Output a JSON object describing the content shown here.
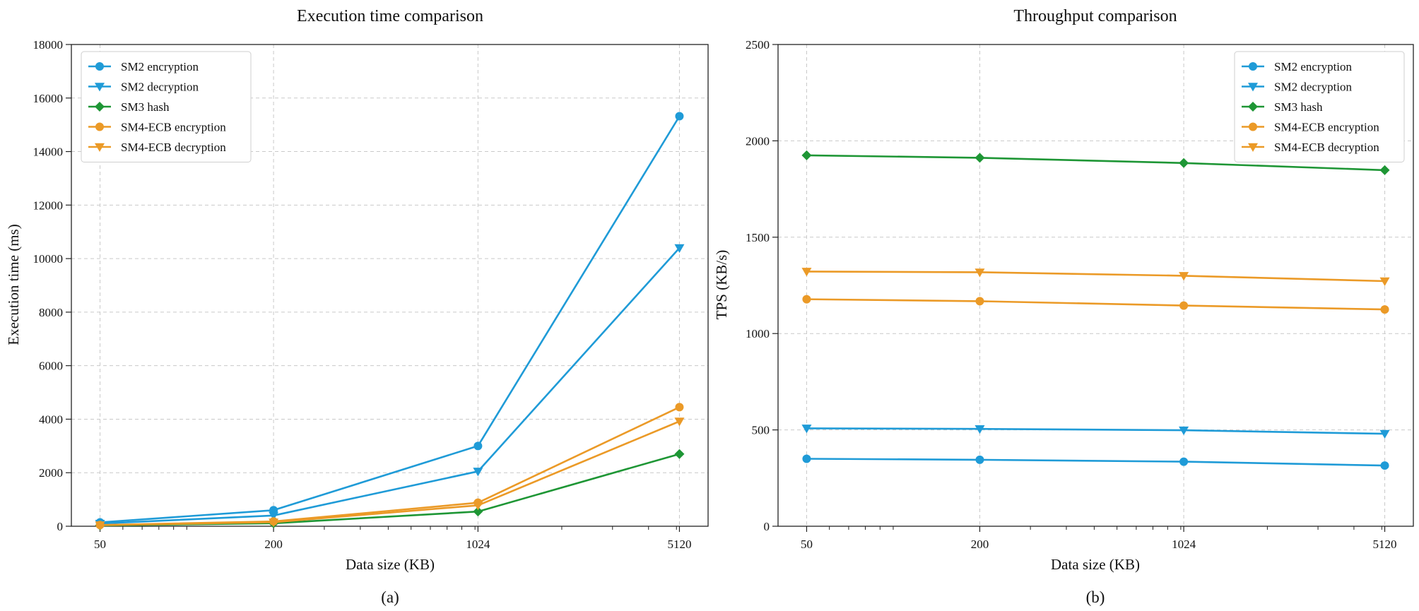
{
  "chart_data": [
    {
      "type": "line",
      "title": "Execution time comparison",
      "xlabel": "Data size (KB)",
      "ylabel": "Execution time (ms)",
      "caption": "(a)",
      "x_scale": "log",
      "x": [
        50,
        200,
        1024,
        5120
      ],
      "x_tick_labels": [
        "50",
        "200",
        "1024",
        "5120"
      ],
      "ylim": [
        0,
        18000
      ],
      "y_ticks": [
        0,
        2000,
        4000,
        6000,
        8000,
        10000,
        12000,
        14000,
        16000,
        18000
      ],
      "y_tick_labels": [
        "0",
        "2000",
        "4000",
        "6000",
        "8000",
        "10000",
        "12000",
        "14000",
        "16000",
        "18000"
      ],
      "grid": true,
      "legend_position": "top-left",
      "series": [
        {
          "name": "SM2 encryption",
          "values": [
            145,
            600,
            3000,
            15320
          ],
          "color": "#1f9bd7",
          "marker": "circle"
        },
        {
          "name": "SM2 decryption",
          "values": [
            100,
            400,
            2050,
            10400
          ],
          "color": "#1f9bd7",
          "marker": "triangle-down"
        },
        {
          "name": "SM3 hash",
          "values": [
            30,
            110,
            550,
            2700
          ],
          "color": "#1e9635",
          "marker": "diamond"
        },
        {
          "name": "SM4-ECB encryption",
          "values": [
            45,
            180,
            880,
            4450
          ],
          "color": "#eb9a27",
          "marker": "circle"
        },
        {
          "name": "SM4-ECB decryption",
          "values": [
            40,
            150,
            780,
            3920
          ],
          "color": "#eb9a27",
          "marker": "triangle-down"
        }
      ]
    },
    {
      "type": "line",
      "title": "Throughput comparison",
      "xlabel": "Data size (KB)",
      "ylabel": "TPS (KB/s)",
      "caption": "(b)",
      "x_scale": "log",
      "x": [
        50,
        200,
        1024,
        5120
      ],
      "x_tick_labels": [
        "50",
        "200",
        "1024",
        "5120"
      ],
      "ylim": [
        0,
        2500
      ],
      "y_ticks": [
        0,
        500,
        1000,
        1500,
        2000,
        2500
      ],
      "y_tick_labels": [
        "0",
        "500",
        "1000",
        "1500",
        "2000",
        "2500"
      ],
      "grid": true,
      "legend_position": "top-right",
      "series": [
        {
          "name": "SM2 encryption",
          "values": [
            350,
            345,
            335,
            315
          ],
          "color": "#1f9bd7",
          "marker": "circle"
        },
        {
          "name": "SM2 decryption",
          "values": [
            508,
            505,
            498,
            480
          ],
          "color": "#1f9bd7",
          "marker": "triangle-down"
        },
        {
          "name": "SM3 hash",
          "values": [
            1925,
            1912,
            1885,
            1848
          ],
          "color": "#1e9635",
          "marker": "diamond"
        },
        {
          "name": "SM4-ECB encryption",
          "values": [
            1178,
            1168,
            1145,
            1125
          ],
          "color": "#eb9a27",
          "marker": "circle"
        },
        {
          "name": "SM4-ECB decryption",
          "values": [
            1322,
            1318,
            1300,
            1272
          ],
          "color": "#eb9a27",
          "marker": "triangle-down"
        }
      ]
    }
  ]
}
